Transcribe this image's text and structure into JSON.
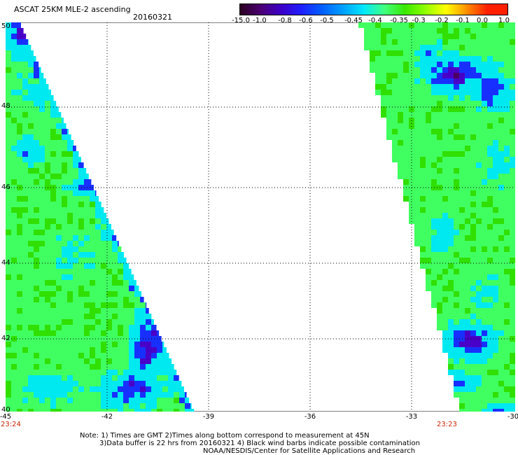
{
  "header": {
    "title": "ASCAT 25KM MLE-2 ascending",
    "date": "20160321"
  },
  "colorbar": {
    "labels": [
      "-15.0",
      "-1.0",
      "-0.8",
      "-0.6",
      "-0.5",
      "-0.45",
      "-0.4",
      "-0.35",
      "-0.3",
      "-0.2",
      "-0.1",
      "0.0",
      "1.0"
    ],
    "colors": [
      "#2a0020",
      "#4b0072",
      "#3c00c8",
      "#1e20ff",
      "#0060ff",
      "#00a0ff",
      "#00e8ff",
      "#40ff80",
      "#38e800",
      "#90ff00",
      "#ffff00",
      "#ff9000",
      "#ff2000"
    ]
  },
  "map": {
    "lat_labels": [
      "50",
      "48",
      "46",
      "44",
      "42",
      "40"
    ],
    "lon_labels": [
      "-45",
      "-42",
      "-39",
      "-36",
      "-33",
      "-30"
    ],
    "times": {
      "left": "23:24",
      "right": "23:23"
    },
    "colors": {
      "dark_purple": "#4a0060",
      "purple": "#4800c8",
      "blue": "#1830ff",
      "cyan": "#00e8f0",
      "light_green": "#40ff60",
      "green": "#30e000",
      "lime": "#88ff20"
    }
  },
  "notes": {
    "line1": "Note: 1) Times are GMT 2)Times along bottom correspond to measurement at 45N",
    "line2": "3)Data buffer is 22 hrs from 20160321 4) Black wind barbs indicate possible contamination",
    "line3": "NOAA/NESDIS/Center for Satellite Applications and Research"
  }
}
